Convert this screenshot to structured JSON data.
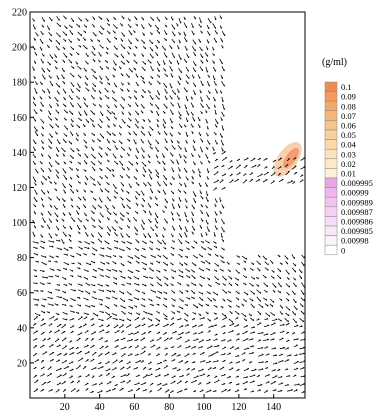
{
  "chart_data": {
    "type": "vector-field",
    "title": "",
    "xlabel": "",
    "ylabel": "",
    "xlim": [
      0,
      158
    ],
    "ylim": [
      0,
      220
    ],
    "x_ticks": [
      20,
      40,
      60,
      80,
      100,
      120,
      140
    ],
    "y_ticks": [
      20,
      40,
      60,
      80,
      100,
      120,
      140,
      160,
      180,
      200,
      220
    ],
    "vector_color": "#000000",
    "highlight_region": {
      "center": [
        148,
        136
      ],
      "color": "#f2a86e"
    },
    "legend": {
      "unit": "(g/ml)",
      "placement": "right",
      "entries": [
        {
          "label": "0.1",
          "color": "#f08a55"
        },
        {
          "label": "0.09",
          "color": "#f2995f"
        },
        {
          "label": "0.08",
          "color": "#f4a86b"
        },
        {
          "label": "0.07",
          "color": "#f6b67a"
        },
        {
          "label": "0.06",
          "color": "#f8c38a"
        },
        {
          "label": "0.05",
          "color": "#f9cf9a"
        },
        {
          "label": "0.04",
          "color": "#fbd9aa"
        },
        {
          "label": "0.03",
          "color": "#fce2b9"
        },
        {
          "label": "0.02",
          "color": "#fde9c7"
        },
        {
          "label": "0.01",
          "color": "#fef0d6"
        },
        {
          "label": "0.009995",
          "color": "#e9a6e6"
        },
        {
          "label": "0.00999",
          "color": "#eeb6eb"
        },
        {
          "label": "0.009989",
          "color": "#f2c4f0"
        },
        {
          "label": "0.009987",
          "color": "#f5d1f3"
        },
        {
          "label": "0.009986",
          "color": "#f8ddf6"
        },
        {
          "label": "0.009985",
          "color": "#fae8f9"
        },
        {
          "label": "0.00998",
          "color": "#fcf2fc"
        },
        {
          "label": "0",
          "color": "#ffffff"
        }
      ]
    }
  }
}
